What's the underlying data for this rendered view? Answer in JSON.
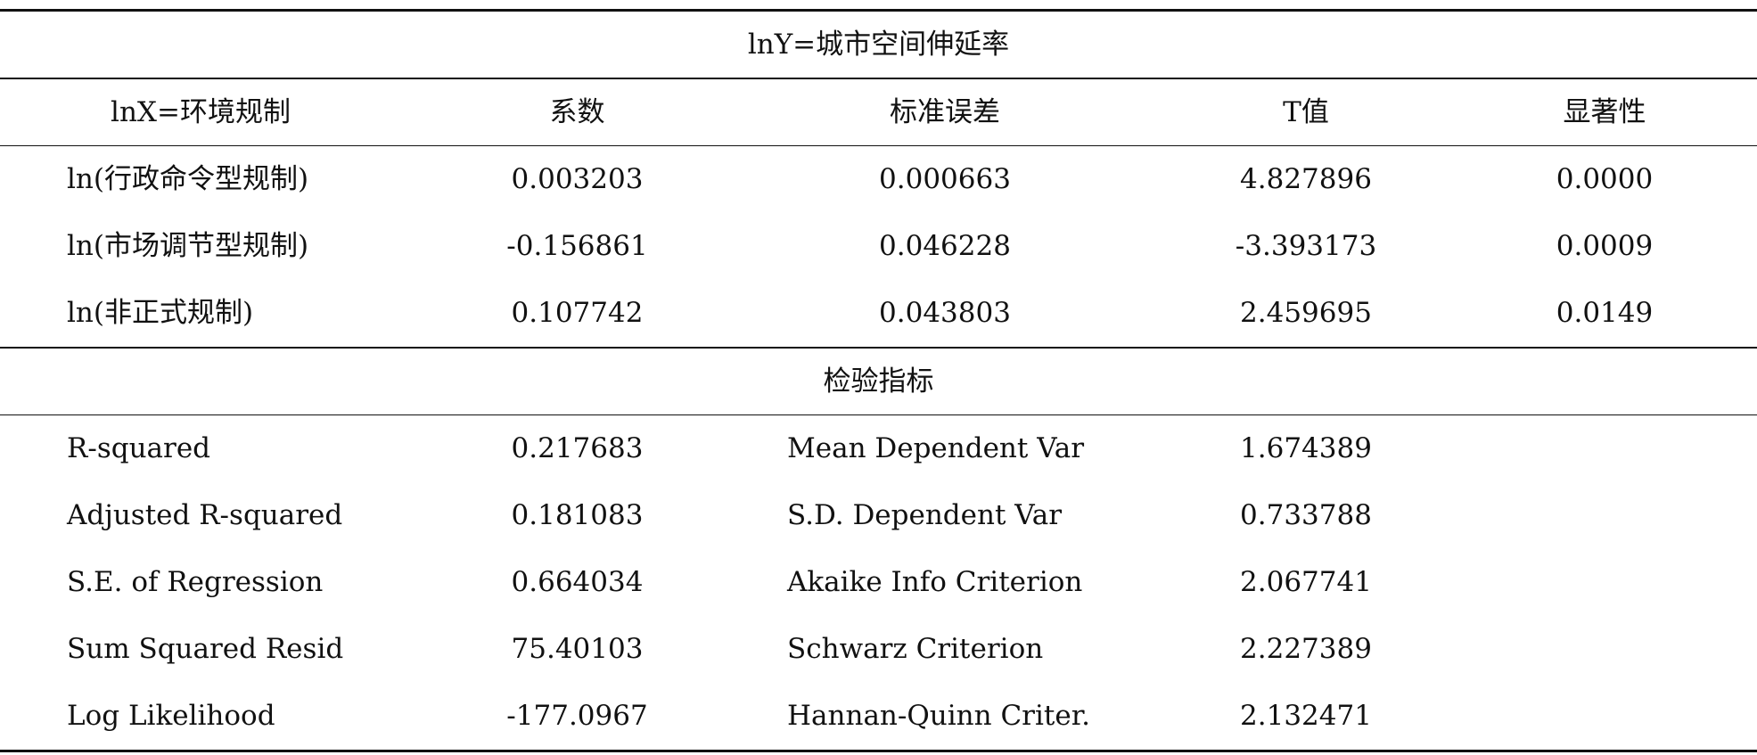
{
  "title_row": "lnY=城市空间伸延率",
  "headers": [
    "lnX=环境规制",
    "系数",
    "标准误差",
    "T值",
    "显著性"
  ],
  "regression_rows": [
    {
      "var": "ln(行政命令型规制)",
      "coef": "0.003203",
      "se": "0.000663",
      "t": "4.827896",
      "sig": "0.0000"
    },
    {
      "var": "ln(市场调节型规制)",
      "coef": "-0.156861",
      "se": "0.046228",
      "t": "-3.393173",
      "sig": "0.0009"
    },
    {
      "var": "ln(非正式规制)",
      "coef": "0.107742",
      "se": "0.043803",
      "t": "2.459695",
      "sig": "0.0149"
    }
  ],
  "section_title": "检验指标",
  "stats_rows": [
    {
      "label1": "R-squared",
      "value1": "0.217683",
      "label2": "Mean Dependent Var",
      "value2": "1.674389"
    },
    {
      "label1": "Adjusted R-squared",
      "value1": "0.181083",
      "label2": "S.D. Dependent Var",
      "value2": "0.733788"
    },
    {
      "label1": "S.E. of Regression",
      "value1": "0.664034",
      "label2": "Akaike Info Criterion",
      "value2": "2.067741"
    },
    {
      "label1": "Sum Squared Resid",
      "value1": "75.40103",
      "label2": "Schwarz Criterion",
      "value2": "2.227389"
    },
    {
      "label1": "Log Likelihood",
      "value1": "-177.0967",
      "label2": "Hannan-Quinn Criter.",
      "value2": "2.132471"
    }
  ]
}
